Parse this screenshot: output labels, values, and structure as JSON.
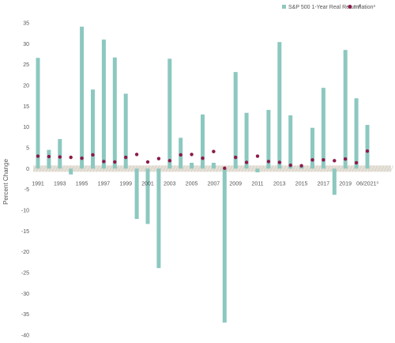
{
  "chart_data": {
    "type": "bar",
    "ylabel": "Percent Change",
    "ylim": [
      -40,
      35
    ],
    "yticks": [
      35,
      30,
      25,
      20,
      15,
      10,
      5,
      0,
      -5,
      -10,
      -15,
      -20,
      -25,
      -30,
      -35,
      -40
    ],
    "x": [
      1991,
      1992,
      1993,
      1994,
      1995,
      1996,
      1997,
      1998,
      1999,
      2000,
      2001,
      2002,
      2003,
      2004,
      2005,
      2006,
      2007,
      2008,
      2009,
      2010,
      2011,
      2012,
      2013,
      2014,
      2015,
      2016,
      2017,
      2018,
      2019,
      2020,
      2021
    ],
    "xtick_labels": [
      "1991",
      "",
      "1993",
      "",
      "1995",
      "",
      "1997",
      "",
      "1999",
      "",
      "2001",
      "",
      "2003",
      "",
      "2005",
      "",
      "2007",
      "",
      "2009",
      "",
      "2011",
      "",
      "2013",
      "",
      "2015",
      "",
      "2017",
      "",
      "2019",
      "",
      "06/2021³"
    ],
    "series": [
      {
        "name": "S&P 500 1-Year Real Return²",
        "kind": "bar",
        "color": "#8cc8c0",
        "values": [
          26.6,
          4.5,
          7.1,
          -1.4,
          34.1,
          19.0,
          31.0,
          26.7,
          18.0,
          -12.1,
          -13.3,
          -23.9,
          26.4,
          7.4,
          1.4,
          13.0,
          1.4,
          -37.0,
          23.2,
          13.4,
          -0.9,
          14.1,
          30.4,
          12.8,
          0.6,
          9.8,
          19.4,
          -6.3,
          28.5,
          16.9,
          10.5
        ]
      },
      {
        "name": "Inflation³",
        "kind": "dot",
        "color": "#8b1a4a",
        "values": [
          3.0,
          2.9,
          2.8,
          2.7,
          2.5,
          3.3,
          1.7,
          1.6,
          2.7,
          3.4,
          1.6,
          2.4,
          1.9,
          3.3,
          3.4,
          2.5,
          4.1,
          0.1,
          2.7,
          1.5,
          3.0,
          1.7,
          1.5,
          0.8,
          0.7,
          2.1,
          2.1,
          1.9,
          2.3,
          1.4,
          4.2
        ]
      }
    ]
  }
}
